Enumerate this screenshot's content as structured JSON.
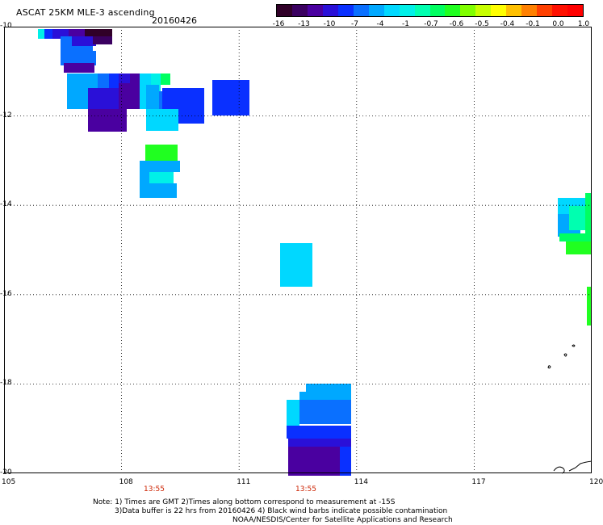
{
  "header": {
    "title": "ASCAT 25KM MLE-3 ascending",
    "date": "20160426"
  },
  "colorbar": {
    "colors": [
      "#300028",
      "#3a0060",
      "#4a00a0",
      "#2a10d8",
      "#0a30ff",
      "#0a70ff",
      "#00a8ff",
      "#00d8ff",
      "#00f0e8",
      "#00ffb0",
      "#00ff60",
      "#20ff20",
      "#80ff00",
      "#c8ff00",
      "#ffff00",
      "#ffc000",
      "#ff8000",
      "#ff4000",
      "#ff1000",
      "#ff0000"
    ],
    "labels": [
      "-16",
      "-13",
      "-10",
      "-7",
      "-4",
      "-1",
      "-0.7",
      "-0.6",
      "-0.5",
      "-0.4",
      "-0.1",
      "0.0",
      "1.0"
    ]
  },
  "map": {
    "lon_range": [
      105,
      120
    ],
    "lat_range": [
      -20,
      -10
    ],
    "lat_ticks": [
      "-10",
      "-12",
      "-14",
      "-16",
      "-18",
      "-20"
    ],
    "lon_ticks": [
      "105",
      "108",
      "111",
      "114",
      "117",
      "120"
    ],
    "time_labels": [
      "13:55",
      "13:55"
    ],
    "time_color": "#cc2200"
  },
  "notes": {
    "line1": "Note: 1) Times are GMT 2)Times along bottom correspond to measurement at -15S",
    "line2": "3)Data buffer is 22 hrs from 20160426 4) Black wind barbs indicate possible contamination",
    "line3": "NOAA/NESDIS/Center for Satellite Applications and Research"
  }
}
